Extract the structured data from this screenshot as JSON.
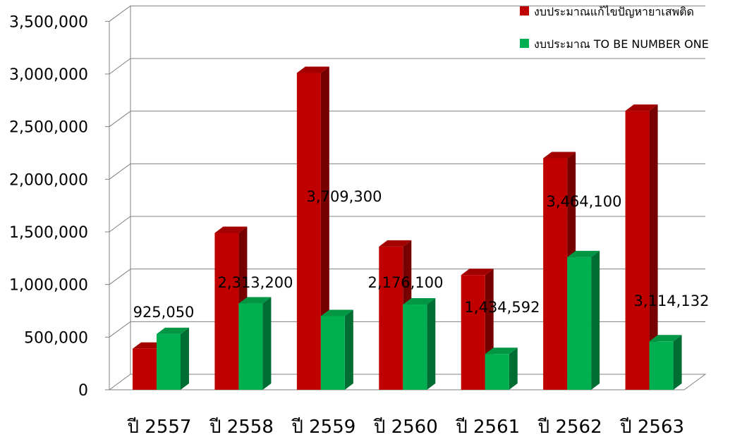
{
  "chart_data": {
    "type": "bar",
    "categories": [
      "ปี 2557",
      "ปี 2558",
      "ปี 2559",
      "ปี 2560",
      "ปี 2561",
      "ปี 2562",
      "ปี 2563"
    ],
    "series": [
      {
        "name": "งบประมาณแก้ไขปัญหายาเสพติด",
        "values": [
          390000,
          1490000,
          3010000,
          1360000,
          1090000,
          2200000,
          2650000
        ],
        "color": "#c00000"
      },
      {
        "name": "งบประมาณ TO BE NUMBER ONE",
        "values": [
          530000,
          820000,
          700000,
          810000,
          340000,
          1260000,
          460000
        ],
        "color": "#00b050"
      }
    ],
    "data_labels": [
      "925,050",
      "2,313,200",
      "3,709,300",
      "2,176,100",
      "1,434,592",
      "3,464,100",
      "3,114,132"
    ],
    "y_ticks": [
      "0",
      "500,000",
      "1,000,000",
      "1,500,000",
      "2,000,000",
      "2,500,000",
      "3,000,000",
      "3,500,000"
    ],
    "ylim": [
      0,
      3500000
    ],
    "grid": true,
    "legend_position": "top-right",
    "style": "3d-clustered-column"
  }
}
